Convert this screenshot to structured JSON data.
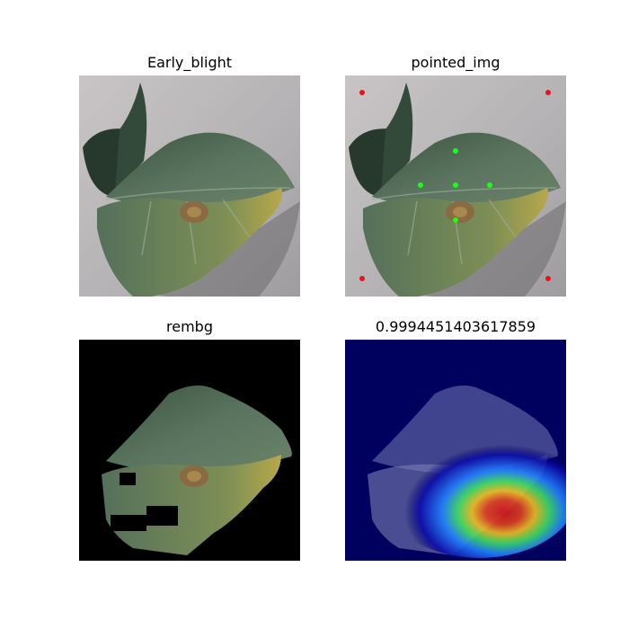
{
  "figure": {
    "panels": [
      {
        "title": "Early_blight"
      },
      {
        "title": "pointed_img"
      },
      {
        "title": "rembg"
      },
      {
        "title": "0.9994451403617859"
      }
    ]
  },
  "markers": {
    "corner_color": "#e8141e",
    "center_color": "#1aff1a"
  },
  "colors": {
    "background_gray": "#b9b7b8",
    "leaf_dark": "#2e4a36",
    "leaf_mid": "#4f6b55",
    "leaf_yellow": "#b7a84a",
    "lesion_brown": "#8a6a42",
    "mask_black": "#000000",
    "heatmap_navy": "#00005e"
  }
}
